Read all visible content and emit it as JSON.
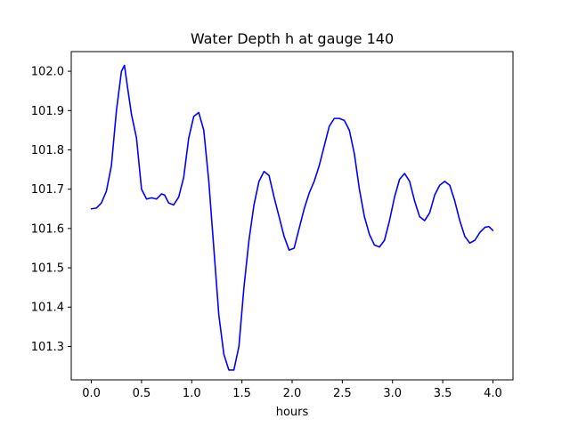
{
  "chart_data": {
    "type": "line",
    "title": "Water Depth h at gauge 140",
    "xlabel": "hours",
    "ylabel": "",
    "xlim": [
      -0.2,
      4.2
    ],
    "ylim": [
      101.215,
      102.05
    ],
    "x_ticks": [
      0.0,
      0.5,
      1.0,
      1.5,
      2.0,
      2.5,
      3.0,
      3.5,
      4.0
    ],
    "x_tick_labels": [
      "0.0",
      "0.5",
      "1.0",
      "1.5",
      "2.0",
      "2.5",
      "3.0",
      "3.5",
      "4.0"
    ],
    "y_ticks": [
      101.3,
      101.4,
      101.5,
      101.6,
      101.7,
      101.8,
      101.9,
      102.0
    ],
    "y_tick_labels": [
      "101.3",
      "101.4",
      "101.5",
      "101.6",
      "101.7",
      "101.8",
      "101.9",
      "102.0"
    ],
    "grid": false,
    "line_color": "#0000ff",
    "series": [
      {
        "x": [
          0.0,
          0.05,
          0.1,
          0.15,
          0.2,
          0.25,
          0.3,
          0.33,
          0.36,
          0.4,
          0.45,
          0.5,
          0.55,
          0.6,
          0.65,
          0.7,
          0.73,
          0.77,
          0.82,
          0.87,
          0.92,
          0.97,
          1.02,
          1.07,
          1.12,
          1.17,
          1.22,
          1.27,
          1.32,
          1.37,
          1.42,
          1.47,
          1.52,
          1.57,
          1.62,
          1.67,
          1.72,
          1.77,
          1.82,
          1.87,
          1.92,
          1.97,
          2.02,
          2.07,
          2.12,
          2.17,
          2.22,
          2.27,
          2.32,
          2.37,
          2.42,
          2.47,
          2.52,
          2.57,
          2.62,
          2.67,
          2.72,
          2.77,
          2.82,
          2.87,
          2.92,
          2.97,
          3.02,
          3.07,
          3.12,
          3.17,
          3.22,
          3.27,
          3.32,
          3.37,
          3.42,
          3.47,
          3.52,
          3.57,
          3.62,
          3.67,
          3.72,
          3.77,
          3.82,
          3.87,
          3.92,
          3.96,
          4.0
        ],
        "y": [
          101.65,
          101.652,
          101.665,
          101.695,
          101.76,
          101.9,
          102.0,
          102.015,
          101.96,
          101.89,
          101.83,
          101.7,
          101.675,
          101.678,
          101.675,
          101.688,
          101.685,
          101.665,
          101.66,
          101.68,
          101.73,
          101.83,
          101.885,
          101.895,
          101.85,
          101.72,
          101.55,
          101.38,
          101.28,
          101.24,
          101.24,
          101.3,
          101.45,
          101.57,
          101.66,
          101.72,
          101.745,
          101.735,
          101.68,
          101.63,
          101.58,
          101.545,
          101.55,
          101.6,
          101.65,
          101.69,
          101.72,
          101.76,
          101.81,
          101.86,
          101.88,
          101.88,
          101.875,
          101.85,
          101.79,
          101.7,
          101.63,
          101.585,
          101.558,
          101.553,
          101.57,
          101.62,
          101.68,
          101.725,
          101.74,
          101.72,
          101.67,
          101.63,
          101.62,
          101.64,
          101.685,
          101.71,
          101.72,
          101.71,
          101.67,
          101.62,
          101.58,
          101.563,
          101.57,
          101.59,
          101.603,
          101.605,
          101.595
        ]
      }
    ]
  }
}
